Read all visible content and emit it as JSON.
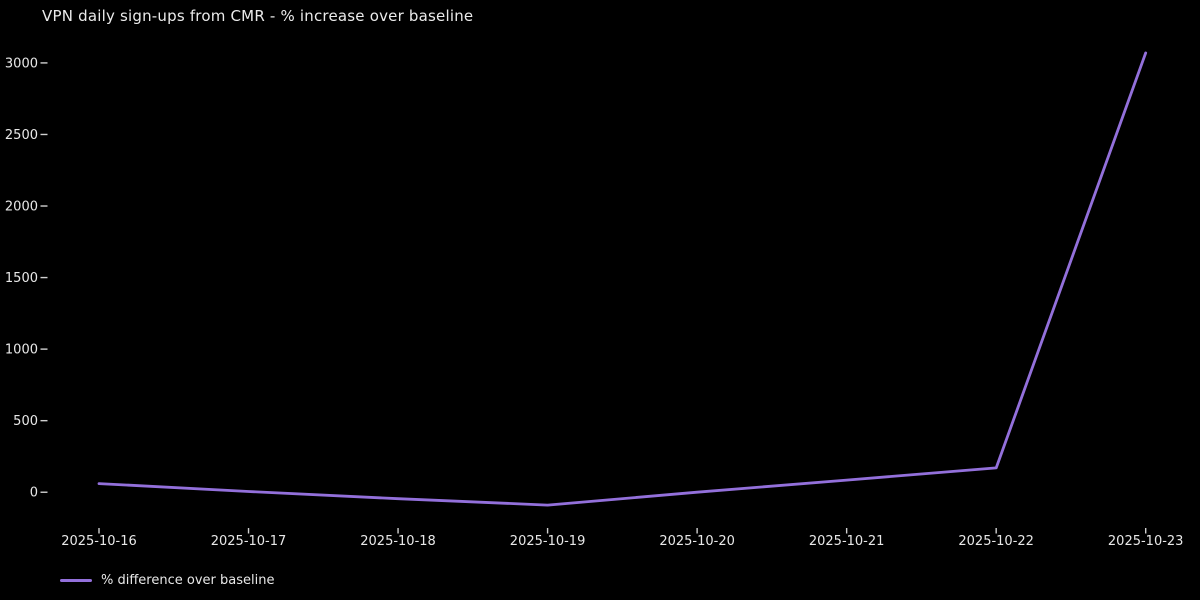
{
  "figure": {
    "background": "#000000",
    "text_color": "#e8e8e8",
    "tick_color": "#d0d0d0"
  },
  "legend": {
    "label": "% difference over baseline",
    "swatch_color": "#9370db"
  },
  "chart_data": {
    "type": "line",
    "title": "VPN daily sign-ups from CMR - % increase over baseline",
    "x": [
      "2025-10-16",
      "2025-10-17",
      "2025-10-18",
      "2025-10-19",
      "2025-10-20",
      "2025-10-21",
      "2025-10-22",
      "2025-10-23"
    ],
    "series": [
      {
        "name": "% difference over baseline",
        "color": "#9370db",
        "values": [
          60,
          5,
          -45,
          -90,
          0,
          85,
          170,
          3070
        ]
      }
    ],
    "xlabel": "",
    "ylabel": "",
    "yticks": [
      0,
      500,
      1000,
      1500,
      2000,
      2500,
      3000
    ],
    "ylim": [
      -250,
      3230
    ],
    "grid": false,
    "legend_position": "lower-left-outside",
    "line_width": 2.8
  }
}
